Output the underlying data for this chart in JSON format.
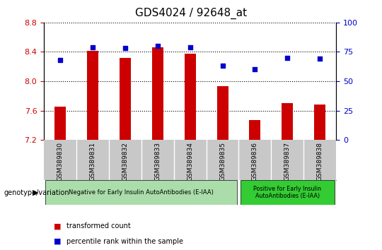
{
  "title": "GDS4024 / 92648_at",
  "samples": [
    "GSM389830",
    "GSM389831",
    "GSM389832",
    "GSM389833",
    "GSM389834",
    "GSM389835",
    "GSM389836",
    "GSM389837",
    "GSM389838"
  ],
  "bar_values": [
    7.65,
    8.41,
    8.32,
    8.46,
    8.38,
    7.93,
    7.47,
    7.7,
    7.68
  ],
  "dot_values": [
    68,
    79,
    78,
    80,
    79,
    63,
    60,
    70,
    69
  ],
  "ylim": [
    7.2,
    8.8
  ],
  "y2lim": [
    0,
    100
  ],
  "yticks": [
    7.2,
    7.6,
    8.0,
    8.4,
    8.8
  ],
  "y2ticks": [
    0,
    25,
    50,
    75,
    100
  ],
  "bar_color": "#CC0000",
  "dot_color": "#0000CC",
  "bar_width": 0.35,
  "group1_label": "Negative for Early Insulin AutoAntibodies (E-IAA)",
  "group2_label": "Positive for Early Insulin\nAutoAntibodies (E-IAA)",
  "group1_color": "#AADDAA",
  "group2_color": "#33CC33",
  "group1_count": 6,
  "group2_count": 3,
  "legend_bar_label": "transformed count",
  "legend_dot_label": "percentile rank within the sample",
  "genotype_label": "genotype/variation",
  "xtick_bg_color": "#C8C8C8",
  "plot_bg": "#FFFFFF",
  "title_fontsize": 11,
  "tick_fontsize": 8,
  "axis_color_left": "#CC0000",
  "axis_color_right": "#0000CC"
}
